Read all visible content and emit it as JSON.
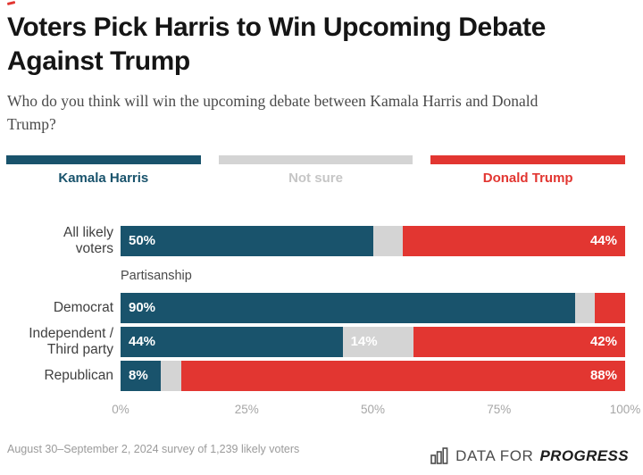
{
  "header": {
    "title": "Voters Pick Harris to Win Upcoming Debate Against Trump",
    "subtitle": "Who do you think will win the upcoming debate between Kamala Harris and Donald Trump?"
  },
  "legend": {
    "items": [
      {
        "label": "Kamala Harris",
        "swatch_color": "#19536C",
        "label_color": "#19536C"
      },
      {
        "label": "Not sure",
        "swatch_color": "#D4D4D4",
        "label_color": "#C6C6C6"
      },
      {
        "label": "Donald Trump",
        "swatch_color": "#E23631",
        "label_color": "#E23631"
      }
    ]
  },
  "chart_data": {
    "type": "bar",
    "orientation": "horizontal",
    "stacked": true,
    "unit": "%",
    "xlim": [
      0,
      100
    ],
    "x_ticks": [
      "0%",
      "25%",
      "50%",
      "75%",
      "100%"
    ],
    "grid": false,
    "legend_position": "top",
    "series": [
      "Kamala Harris",
      "Not sure",
      "Donald Trump"
    ],
    "colors": [
      "#19536C",
      "#D4D4D4",
      "#E23631"
    ],
    "section_label": "Partisanship",
    "rows": [
      {
        "category": "All likely voters",
        "label_lines": [
          "All likely",
          "voters"
        ],
        "values": [
          50,
          6,
          44
        ],
        "segment_labels": [
          "50%",
          "",
          "44%"
        ],
        "group": "top"
      },
      {
        "category": "Democrat",
        "label_lines": [
          "Democrat"
        ],
        "values": [
          90,
          4,
          6
        ],
        "segment_labels": [
          "90%",
          "",
          ""
        ],
        "group": "partisanship"
      },
      {
        "category": "Independent / Third party",
        "label_lines": [
          "Independent /",
          "Third party"
        ],
        "values": [
          44,
          14,
          42
        ],
        "segment_labels": [
          "44%",
          "14%",
          "42%"
        ],
        "group": "partisanship"
      },
      {
        "category": "Republican",
        "label_lines": [
          "Republican"
        ],
        "values": [
          8,
          4,
          88
        ],
        "segment_labels": [
          "8%",
          "",
          "88%"
        ],
        "group": "partisanship"
      }
    ]
  },
  "footer": {
    "note": "August 30–September 2, 2024 survey of 1,239 likely voters",
    "logo_prefix": "DATA FOR",
    "logo_suffix": "PROGRESS",
    "logo_icon": "bar-chart-icon",
    "logo_color": "#1d1d1d"
  }
}
